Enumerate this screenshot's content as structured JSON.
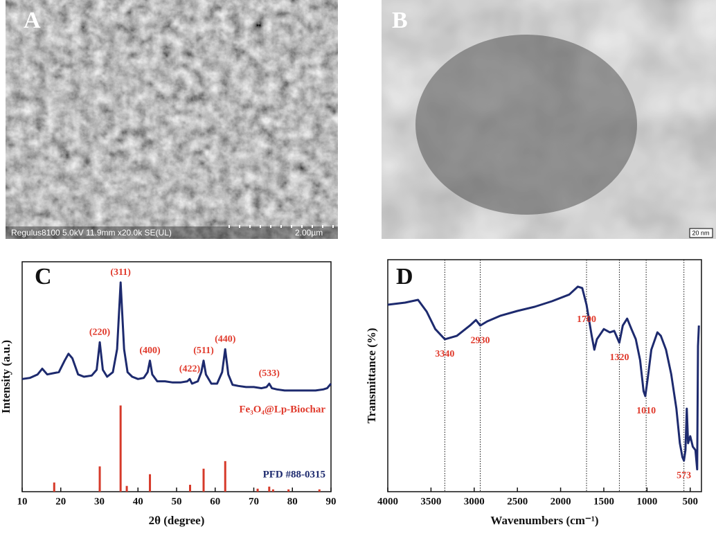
{
  "panels": {
    "A": {
      "letter": "A",
      "caption": "Regulus8100 5.0kV 11.9mm x20.0k SE(UL)",
      "scale": "2.00µm"
    },
    "B": {
      "letter": "B",
      "scale": "20 nm"
    }
  },
  "chart_data": [
    {
      "type": "line",
      "letter": "C",
      "x_label": "2θ (degree)",
      "y_label": "Intensity (a.u.)",
      "xlim": [
        10,
        90
      ],
      "xticks": [
        10,
        20,
        30,
        40,
        50,
        60,
        70,
        80,
        90
      ],
      "ylim": [
        0,
        100
      ],
      "series": [
        {
          "name": "Fe₃O₄@Lp-Biochar",
          "style": "line",
          "color": "#1d2a6e",
          "label_color": "#e0392b",
          "x": [
            10,
            12,
            14,
            15.2,
            16.5,
            18,
            19.5,
            21,
            22,
            23,
            24.5,
            26,
            28,
            29.3,
            30.1,
            30.9,
            32,
            33.5,
            34.6,
            35.5,
            36.4,
            37.3,
            38.5,
            40,
            41.5,
            42.5,
            43.1,
            43.7,
            45,
            47,
            49,
            51,
            52.8,
            53.4,
            54,
            55.5,
            56.4,
            57,
            57.6,
            59,
            60.5,
            61.8,
            62.6,
            63.4,
            64.5,
            66,
            68,
            70,
            72,
            73.3,
            74,
            74.7,
            76,
            78,
            80,
            82,
            84,
            86,
            88,
            89,
            90
          ],
          "values": [
            49,
            49.5,
            51,
            53.5,
            51,
            51.5,
            52,
            57,
            60,
            58,
            51,
            50,
            50.5,
            53,
            65,
            53,
            50,
            52,
            62,
            91,
            62,
            52,
            50,
            49,
            49.5,
            52,
            57,
            51,
            48,
            48,
            47.5,
            47.5,
            48,
            49,
            47,
            48,
            52,
            57,
            51,
            47,
            47,
            52,
            62,
            51,
            46.5,
            46,
            45.5,
            45.5,
            45,
            45.5,
            47,
            45,
            44.5,
            44,
            44,
            44,
            44,
            44,
            44.5,
            45,
            47
          ]
        },
        {
          "name": "PFD #88-0315",
          "style": "stick",
          "color": "#d63a2a",
          "label_color": "#1d2a6e",
          "x": [
            18.3,
            30.1,
            35.5,
            37.1,
            43.1,
            53.5,
            57.0,
            62.6,
            71.0,
            74.0,
            75.0,
            79.0,
            87.0
          ],
          "values": [
            4,
            11,
            37.5,
            2.5,
            7.6,
            3,
            10,
            13.3,
            1.3,
            2.2,
            1,
            1,
            1
          ]
        }
      ],
      "annotations": [
        {
          "text": "(220)",
          "x": 30.1
        },
        {
          "text": "(311)",
          "x": 35.5
        },
        {
          "text": "(400)",
          "x": 43.1
        },
        {
          "text": "(422)",
          "x": 53.4
        },
        {
          "text": "(511)",
          "x": 57
        },
        {
          "text": "(440)",
          "x": 62.6
        },
        {
          "text": "(533)",
          "x": 74
        }
      ]
    },
    {
      "type": "line",
      "letter": "D",
      "x_label": "Wavenumbers (cm⁻¹)",
      "y_label": "Transmittance (%)",
      "xlim": [
        4000,
        370
      ],
      "xticks": [
        4000,
        3500,
        3000,
        2500,
        2000,
        1500,
        1000,
        500
      ],
      "ylim": [
        0,
        100
      ],
      "series": [
        {
          "name": null,
          "style": "line",
          "color": "#1d2a6e",
          "x": [
            4000,
            3800,
            3650,
            3550,
            3450,
            3340,
            3200,
            3050,
            2980,
            2930,
            2850,
            2700,
            2500,
            2300,
            2100,
            1900,
            1800,
            1750,
            1700,
            1640,
            1610,
            1580,
            1500,
            1430,
            1380,
            1320,
            1280,
            1230,
            1180,
            1130,
            1080,
            1040,
            1020,
            990,
            950,
            880,
            840,
            780,
            720,
            660,
            620,
            590,
            573,
            555,
            540,
            525,
            500,
            470,
            440,
            420,
            410,
            400
          ],
          "values": [
            80.6,
            81.5,
            82.7,
            77.6,
            70.1,
            65.7,
            67.2,
            71.6,
            74,
            71.6,
            73.4,
            75.8,
            77.9,
            79.7,
            82.1,
            85,
            88.4,
            87.8,
            80.6,
            67.2,
            61.2,
            65.7,
            70.1,
            68.7,
            69.3,
            64.2,
            71.6,
            74.6,
            70.1,
            65.7,
            56.7,
            43.3,
            41.2,
            49.3,
            61.2,
            68.7,
            67.2,
            61.2,
            50.7,
            35.8,
            20.9,
            14.9,
            13.4,
            17.9,
            35.8,
            20.9,
            23.9,
            19.4,
            17.9,
            9.6,
            62.7,
            71.6
          ]
        }
      ],
      "annotations": [
        {
          "text": "3340",
          "x": 3340
        },
        {
          "text": "2930",
          "x": 2930
        },
        {
          "text": "1700",
          "x": 1700
        },
        {
          "text": "1320",
          "x": 1320
        },
        {
          "text": "1010",
          "x": 1010
        },
        {
          "text": "573",
          "x": 573
        }
      ],
      "vlines": true
    }
  ]
}
